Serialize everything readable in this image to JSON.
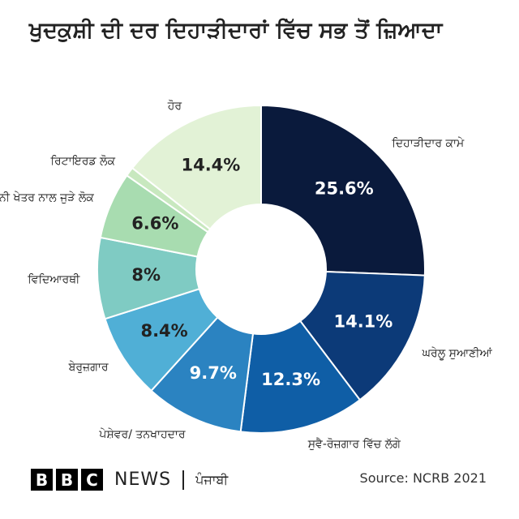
{
  "chart_data": {
    "type": "donut",
    "title": "ਖੁਦਕੁਸ਼ੀ ਦੀ ਦਰ ਦਿਹਾੜੀਦਾਰਾਂ ਵਿੱਚ ਸਭ ਤੋਂ ਜ਼ਿਆਦਾ",
    "categories": [
      "ਦਿਹਾੜੀਦਾਰ ਕਾਮੇ",
      "ਘਰੇਲੂ ਸੁਆਣੀਆਂ",
      "ਸੁਵੈ-ਰੋਜ਼ਗਾਰ ਵਿੱਚ ਲੱਗੇ",
      "ਪੇਸ਼ੇਵਰ/ ਤਨਖਾਹਦਾਰ",
      "ਬੇਰੁਜ਼ਗਾਰ",
      "ਵਿਦਿਆਰਥੀ",
      "ਕਿਸਾਨੀ ਖੇਤਰ ਨਾਲ ਜੁੜੇ ਲੋਕ",
      "ਰਿਟਾਇਰਡ ਲੋਕ",
      "ਹੋਰ"
    ],
    "values": [
      25.6,
      14.1,
      12.3,
      9.7,
      8.4,
      8,
      6.6,
      0.9,
      14.4
    ],
    "value_labels": [
      "25.6%",
      "14.1%",
      "12.3%",
      "9.7%",
      "8.4%",
      "8%",
      "6.6%",
      null,
      "14.4%"
    ],
    "colors": [
      "#0a1a3c",
      "#0c3a78",
      "#0f5ea6",
      "#2b83c1",
      "#50afd6",
      "#7fcbc3",
      "#a8dcb0",
      "#c8e8bf",
      "#e2f2d6"
    ],
    "source": "Source: NCRB 2021"
  },
  "footer": {
    "brand": [
      "B",
      "B",
      "C"
    ],
    "news": "NEWS",
    "language": "ਪੰਜਾਬੀ"
  }
}
